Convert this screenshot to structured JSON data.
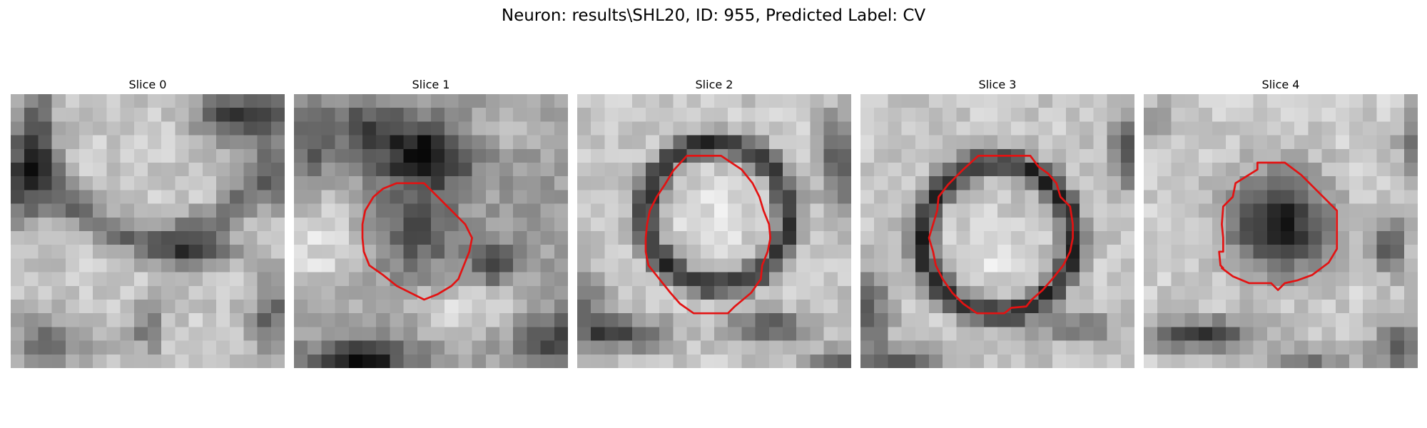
{
  "figure": {
    "title": "Neuron: results\\SHL20, ID: 955, Predicted Label: CV"
  },
  "slices": [
    {
      "title": "Slice 0",
      "has_contour": false
    },
    {
      "title": "Slice 1",
      "has_contour": true
    },
    {
      "title": "Slice 2",
      "has_contour": true
    },
    {
      "title": "Slice 3",
      "has_contour": true
    },
    {
      "title": "Slice 4",
      "has_contour": true
    }
  ],
  "colors": {
    "contour": "#e31212",
    "background": "#ffffff"
  },
  "image": {
    "colormap": "grayscale",
    "grid": "20x20 pixels per slice"
  }
}
